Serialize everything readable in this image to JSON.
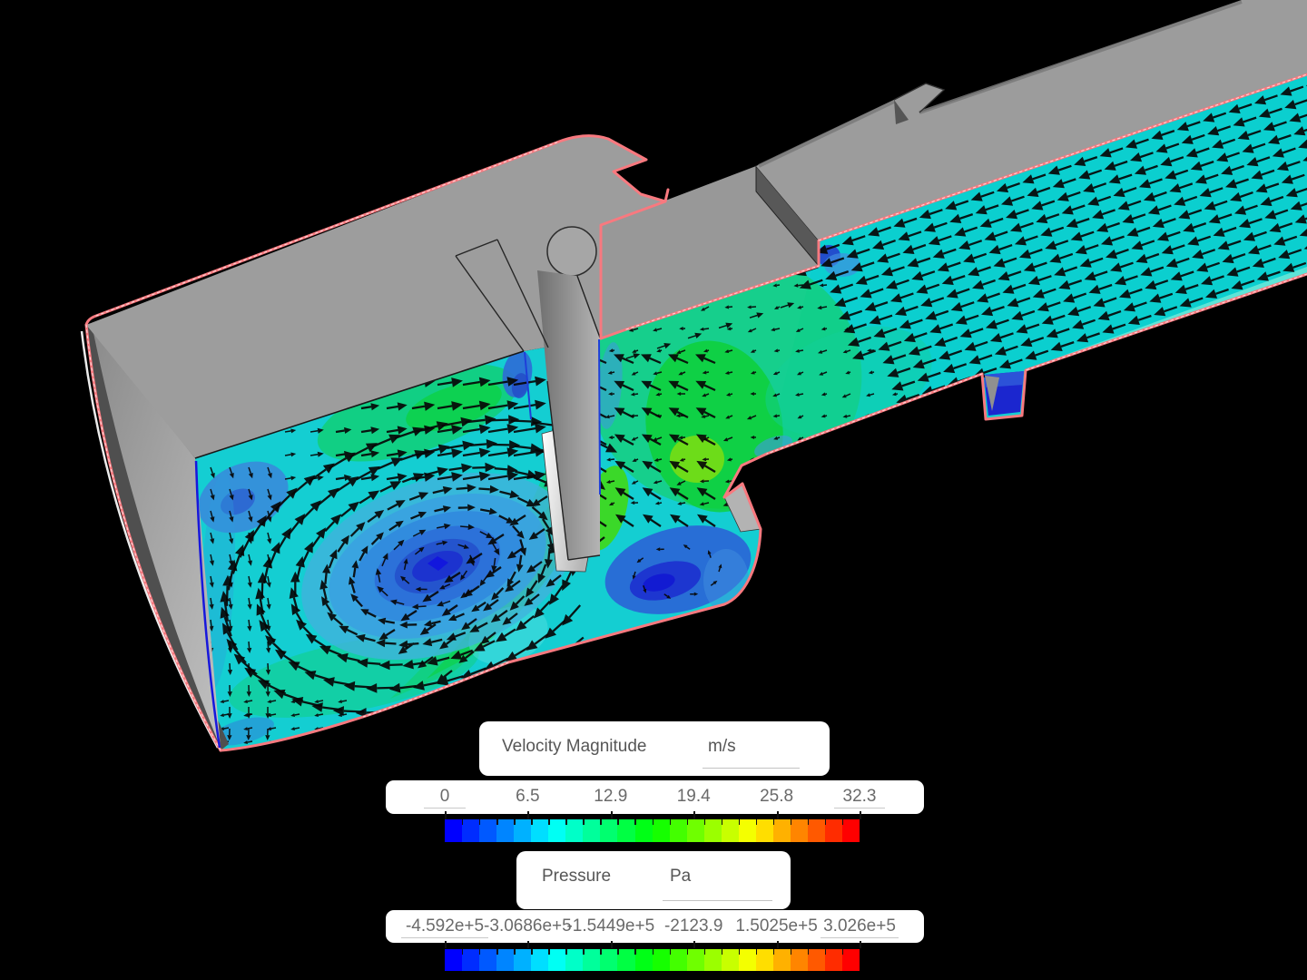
{
  "viewport": {
    "background_color": "#000000",
    "geometry_color": "#9b9b9b",
    "highlight_outline_color": "#f8797f",
    "edge_select_color": "#1a1ae0"
  },
  "velocity_legend": {
    "title": "Velocity Magnitude",
    "unit": "m/s",
    "tick_labels": [
      "0",
      "6.5",
      "12.9",
      "19.4",
      "25.8",
      "32.3"
    ]
  },
  "pressure_legend": {
    "title": "Pressure",
    "unit": "Pa",
    "tick_labels": [
      "-4.592e+5",
      "-3.0686e+5",
      "-1.5449e+5",
      "-2123.9",
      "1.5025e+5",
      "3.026e+5"
    ]
  },
  "colormap": {
    "segments": 24,
    "stops": [
      "#0000ff",
      "#00ffff",
      "#00ff00",
      "#ffff00",
      "#ff0000"
    ]
  }
}
